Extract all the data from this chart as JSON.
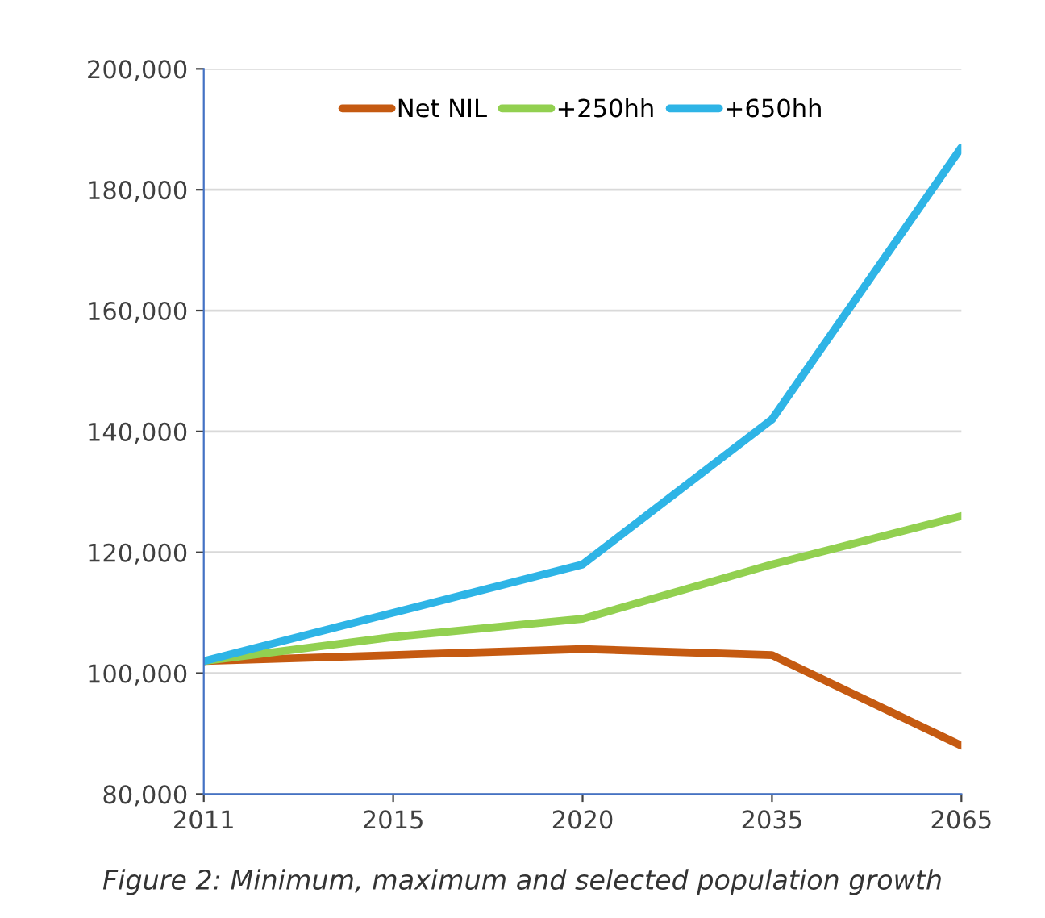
{
  "chart_data": {
    "type": "line",
    "categories": [
      "2011",
      "2015",
      "2020",
      "2035",
      "2065"
    ],
    "series": [
      {
        "name": "Net NIL",
        "color": "#c55a11",
        "values": [
          102000,
          103000,
          104000,
          103000,
          88000
        ]
      },
      {
        "name": "+250hh",
        "color": "#92d050",
        "values": [
          102000,
          106000,
          109000,
          118000,
          126000
        ]
      },
      {
        "name": "+650hh",
        "color": "#2eb4e6",
        "values": [
          102000,
          110000,
          118000,
          142000,
          187000
        ]
      }
    ],
    "ylim": [
      80000,
      200000
    ],
    "yticks": [
      {
        "value": 80000,
        "label": "80,000"
      },
      {
        "value": 100000,
        "label": "100,000"
      },
      {
        "value": 120000,
        "label": "120,000"
      },
      {
        "value": 140000,
        "label": "140,000"
      },
      {
        "value": 160000,
        "label": "160,000"
      },
      {
        "value": 180000,
        "label": "180,000"
      },
      {
        "value": 200000,
        "label": "200,000"
      }
    ],
    "grid": "y",
    "legend": "top",
    "marker": "none",
    "line_style": "solid",
    "annotations": [
      "Figure 2: Minimum, maximum and selected population growth"
    ]
  }
}
